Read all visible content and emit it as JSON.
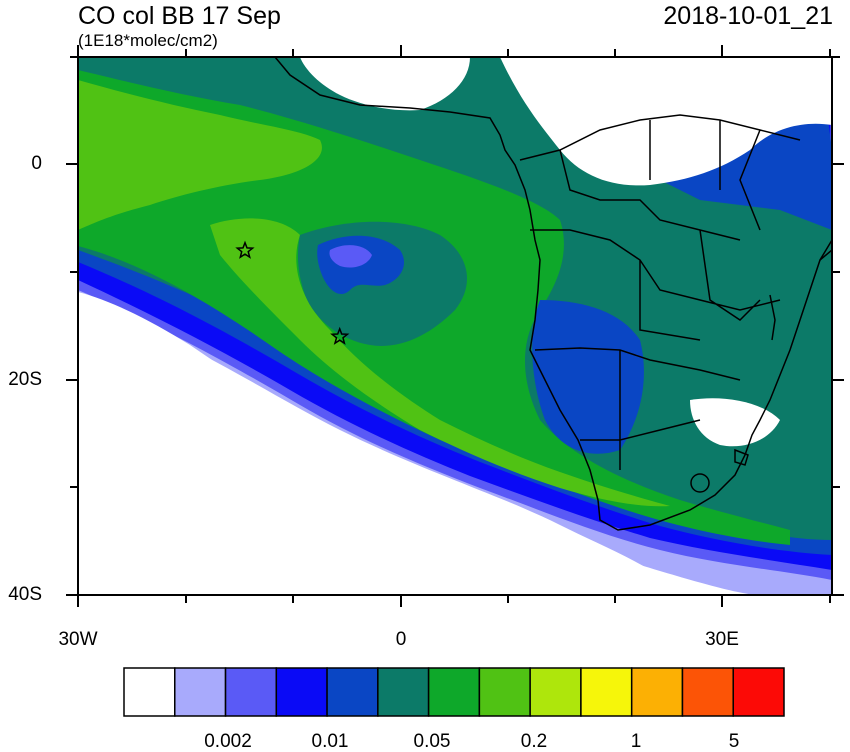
{
  "header": {
    "title": "CO col BB 17 Sep",
    "subtitle": "(1E18*molec/cm2)",
    "datetime": "2018-10-01_21"
  },
  "axes": {
    "y_labels": [
      "0",
      "20S",
      "40S"
    ],
    "x_labels": [
      "30W",
      "0",
      "30E"
    ]
  },
  "markers": [
    {
      "name": "star-marker-1",
      "lon": -14.5,
      "lat": -8.0
    },
    {
      "name": "star-marker-2",
      "lon": -5.7,
      "lat": -16.0
    }
  ],
  "colorbar": {
    "colors": [
      "#ffffff",
      "#a8aafc",
      "#5a5af6",
      "#0a0af6",
      "#0a46c4",
      "#0c7a68",
      "#0ea82a",
      "#50c214",
      "#aee60c",
      "#f6f60a",
      "#fcb004",
      "#fc5406",
      "#fc0a06"
    ],
    "labels": [
      "0.002",
      "0.01",
      "0.05",
      "0.2",
      "1",
      "5"
    ]
  }
}
